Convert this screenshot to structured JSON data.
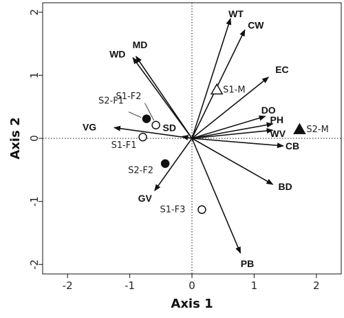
{
  "chart_data": {
    "type": "scatter",
    "subtype": "biplot",
    "xlabel": "Axis 1",
    "ylabel": "Axis 2",
    "xlim": [
      -2.4,
      2.4
    ],
    "ylim": [
      -2.15,
      2.15
    ],
    "x_ticks": [
      "-2",
      "-1",
      "0",
      "1",
      "2"
    ],
    "y_ticks": [
      "-2",
      "-1",
      "0",
      "1",
      "2"
    ],
    "reference_lines": {
      "x": 0,
      "y": 0,
      "style": "dotted"
    },
    "grid": false,
    "vectors": [
      {
        "label": "WT",
        "x": 0.62,
        "y": 1.9
      },
      {
        "label": "CW",
        "x": 0.85,
        "y": 1.72
      },
      {
        "label": "EC",
        "x": 1.23,
        "y": 0.97
      },
      {
        "label": "DO",
        "x": 1.18,
        "y": 0.35
      },
      {
        "label": "PH",
        "x": 1.3,
        "y": 0.23
      },
      {
        "label": "WV",
        "x": 1.3,
        "y": 0.13
      },
      {
        "label": "CB",
        "x": 1.47,
        "y": -0.12
      },
      {
        "label": "BD",
        "x": 1.3,
        "y": -0.73
      },
      {
        "label": "PB",
        "x": 0.78,
        "y": -1.82
      },
      {
        "label": "GV",
        "x": -0.6,
        "y": -0.83
      },
      {
        "label": "SD",
        "x": -0.16,
        "y": 0.03
      },
      {
        "label": "VG",
        "x": -1.25,
        "y": 0.17
      },
      {
        "label": "WD",
        "x": -0.95,
        "y": 1.28
      },
      {
        "label": "MD",
        "x": -0.9,
        "y": 1.3
      }
    ],
    "sites": [
      {
        "label": "S1-M",
        "x": 0.4,
        "y": 0.77,
        "marker": "triangle-open"
      },
      {
        "label": "S2-M",
        "x": 1.73,
        "y": 0.14,
        "marker": "triangle-filled"
      },
      {
        "label": "S1-F2",
        "x": -0.58,
        "y": 0.21,
        "marker": "circle-open"
      },
      {
        "label": "S2-F1",
        "x": -0.73,
        "y": 0.31,
        "marker": "circle-filled"
      },
      {
        "label": "S1-F1",
        "x": -0.79,
        "y": 0.02,
        "marker": "circle-open"
      },
      {
        "label": "S2-F2",
        "x": -0.43,
        "y": -0.4,
        "marker": "circle-filled"
      },
      {
        "label": "S1-F3",
        "x": 0.16,
        "y": -1.13,
        "marker": "circle-open"
      }
    ],
    "colors": {
      "ink": "#111111",
      "marker_fill_open": "#ffffff"
    }
  }
}
